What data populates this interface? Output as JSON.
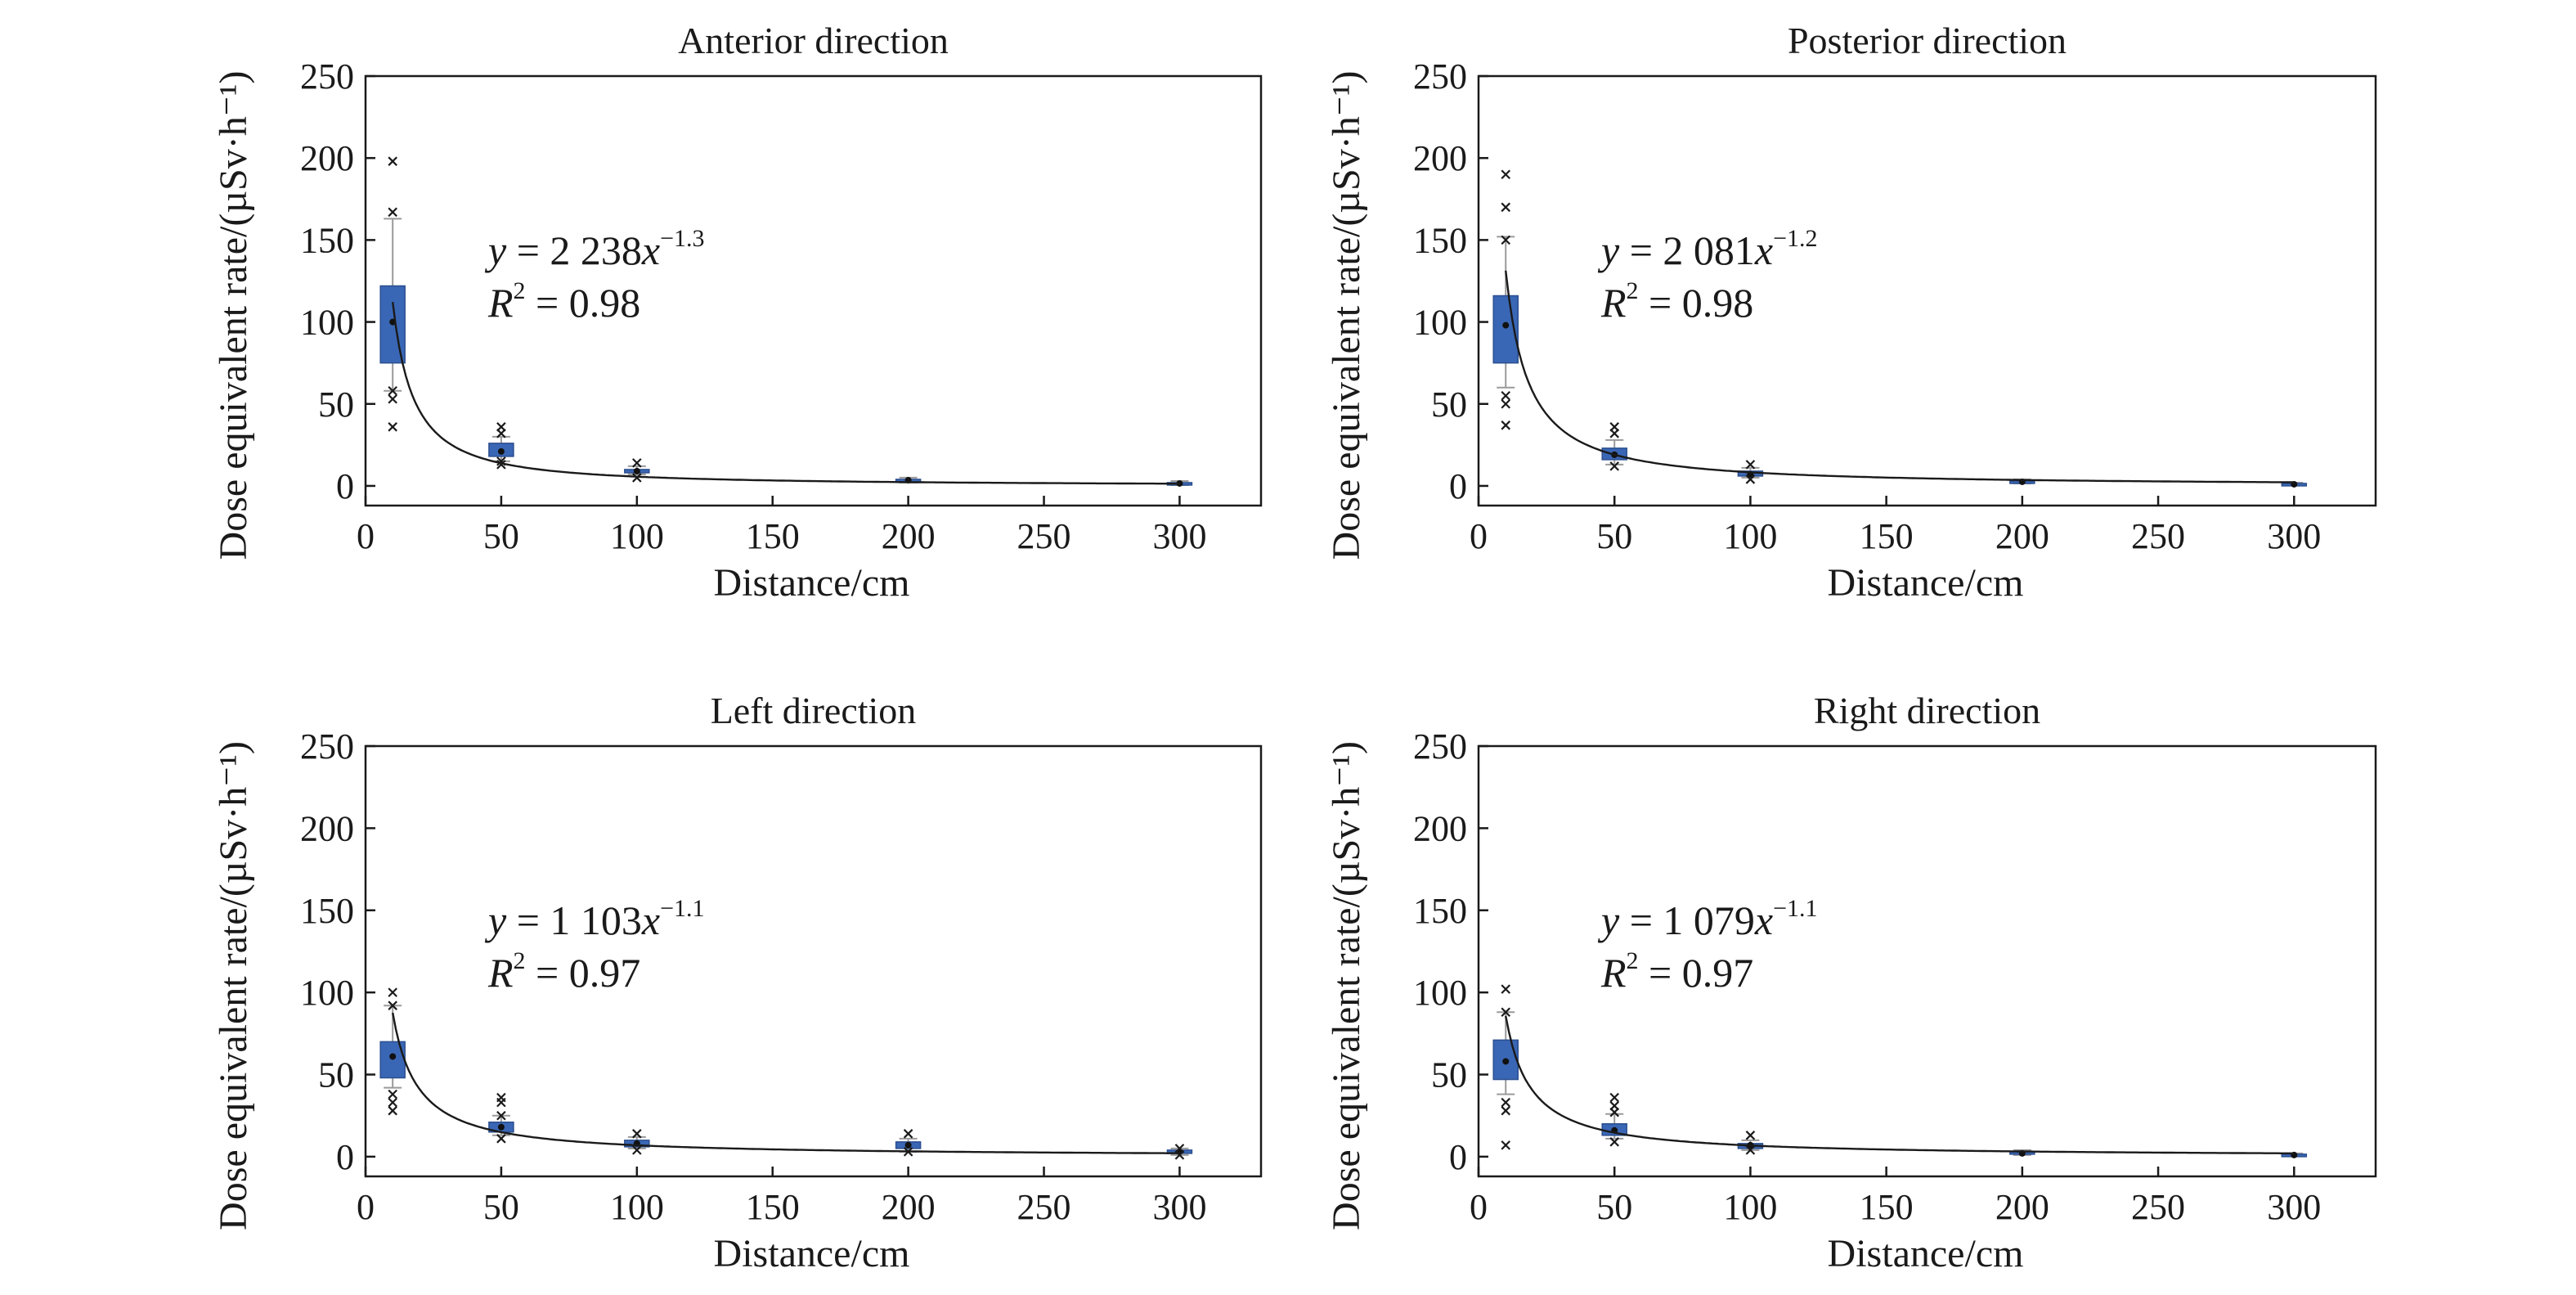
{
  "chart_data": [
    {
      "type": "box",
      "title": "Anterior direction",
      "xlabel": "Distance/cm",
      "ylabel": "Dose equivalent rate/(µSv·h⁻¹)",
      "xlim": [
        0,
        330
      ],
      "ylim": [
        -12,
        250
      ],
      "xticks": [
        0,
        50,
        100,
        150,
        200,
        250,
        300
      ],
      "yticks": [
        0,
        50,
        100,
        150,
        200,
        250
      ],
      "grid": false,
      "boxes": [
        {
          "x": 10,
          "q1": 75,
          "median": 100,
          "q3": 122,
          "whisker_low": 58,
          "whisker_high": 163,
          "outliers": [
            198,
            167,
            58,
            53,
            36
          ]
        },
        {
          "x": 50,
          "q1": 18,
          "median": 21,
          "q3": 26,
          "whisker_low": 15,
          "whisker_high": 30,
          "outliers": [
            36,
            32,
            15,
            13
          ]
        },
        {
          "x": 100,
          "q1": 8,
          "median": 9,
          "q3": 10,
          "whisker_low": 7,
          "whisker_high": 12,
          "outliers": [
            14,
            5
          ]
        },
        {
          "x": 200,
          "q1": 3,
          "median": 3.5,
          "q3": 4,
          "whisker_low": 2,
          "whisker_high": 5,
          "outliers": []
        },
        {
          "x": 300,
          "q1": 1,
          "median": 1.5,
          "q3": 2,
          "whisker_low": 0.5,
          "whisker_high": 3,
          "outliers": []
        }
      ],
      "fit": {
        "a": 2238,
        "b": -1.3,
        "y_prefix": "y = 2 238",
        "x_var": "x",
        "exponent": "−1.3",
        "r2_prefix": "R",
        "r2_power": "2",
        "r2_value": " = 0.98"
      }
    },
    {
      "type": "box",
      "title": "Posterior direction",
      "xlabel": "Distance/cm",
      "ylabel": "Dose equivalent rate/(µSv·h⁻¹)",
      "xlim": [
        0,
        330
      ],
      "ylim": [
        -12,
        250
      ],
      "xticks": [
        0,
        50,
        100,
        150,
        200,
        250,
        300
      ],
      "yticks": [
        0,
        50,
        100,
        150,
        200,
        250
      ],
      "grid": false,
      "boxes": [
        {
          "x": 10,
          "q1": 75,
          "median": 98,
          "q3": 116,
          "whisker_low": 60,
          "whisker_high": 152,
          "outliers": [
            190,
            170,
            150,
            55,
            50,
            37
          ]
        },
        {
          "x": 50,
          "q1": 16,
          "median": 19,
          "q3": 23,
          "whisker_low": 13,
          "whisker_high": 28,
          "outliers": [
            36,
            32,
            12
          ]
        },
        {
          "x": 100,
          "q1": 6,
          "median": 7,
          "q3": 9,
          "whisker_low": 5,
          "whisker_high": 11,
          "outliers": [
            13,
            4
          ]
        },
        {
          "x": 200,
          "q1": 2,
          "median": 2.5,
          "q3": 3,
          "whisker_low": 1.5,
          "whisker_high": 4,
          "outliers": []
        },
        {
          "x": 300,
          "q1": 0.5,
          "median": 1,
          "q3": 1.5,
          "whisker_low": 0.2,
          "whisker_high": 2,
          "outliers": []
        }
      ],
      "fit": {
        "a": 2081,
        "b": -1.2,
        "y_prefix": "y = 2 081",
        "x_var": "x",
        "exponent": "−1.2",
        "r2_prefix": "R",
        "r2_power": "2",
        "r2_value": " = 0.98"
      }
    },
    {
      "type": "box",
      "title": "Left direction",
      "xlabel": "Distance/cm",
      "ylabel": "Dose equivalent rate/(µSv·h⁻¹)",
      "xlim": [
        0,
        330
      ],
      "ylim": [
        -12,
        250
      ],
      "xticks": [
        0,
        50,
        100,
        150,
        200,
        250,
        300
      ],
      "yticks": [
        0,
        50,
        100,
        150,
        200,
        250
      ],
      "grid": false,
      "boxes": [
        {
          "x": 10,
          "q1": 48,
          "median": 61,
          "q3": 70,
          "whisker_low": 42,
          "whisker_high": 92,
          "outliers": [
            100,
            92,
            38,
            33,
            28
          ]
        },
        {
          "x": 50,
          "q1": 15,
          "median": 18,
          "q3": 21,
          "whisker_low": 13,
          "whisker_high": 25,
          "outliers": [
            36,
            33,
            25,
            11
          ]
        },
        {
          "x": 100,
          "q1": 6,
          "median": 8,
          "q3": 10,
          "whisker_low": 5,
          "whisker_high": 12,
          "outliers": [
            14,
            4
          ]
        },
        {
          "x": 200,
          "q1": 5,
          "median": 7,
          "q3": 9,
          "whisker_low": 3,
          "whisker_high": 11,
          "outliers": [
            14,
            3
          ]
        },
        {
          "x": 300,
          "q1": 2,
          "median": 3,
          "q3": 4,
          "whisker_low": 1,
          "whisker_high": 5,
          "outliers": [
            5,
            1
          ]
        }
      ],
      "fit": {
        "a": 1103,
        "b": -1.1,
        "y_prefix": "y = 1 103",
        "x_var": "x",
        "exponent": "−1.1",
        "r2_prefix": "R",
        "r2_power": "2",
        "r2_value": " = 0.97"
      }
    },
    {
      "type": "box",
      "title": "Right direction",
      "xlabel": "Distance/cm",
      "ylabel": "Dose equivalent rate/(µSv·h⁻¹)",
      "xlim": [
        0,
        330
      ],
      "ylim": [
        -12,
        250
      ],
      "xticks": [
        0,
        50,
        100,
        150,
        200,
        250,
        300
      ],
      "yticks": [
        0,
        50,
        100,
        150,
        200,
        250
      ],
      "grid": false,
      "boxes": [
        {
          "x": 10,
          "q1": 47,
          "median": 58,
          "q3": 71,
          "whisker_low": 38,
          "whisker_high": 88,
          "outliers": [
            102,
            88,
            33,
            28,
            7
          ]
        },
        {
          "x": 50,
          "q1": 13,
          "median": 16,
          "q3": 20,
          "whisker_low": 11,
          "whisker_high": 26,
          "outliers": [
            36,
            31,
            27,
            9
          ]
        },
        {
          "x": 100,
          "q1": 5,
          "median": 7,
          "q3": 8,
          "whisker_low": 4,
          "whisker_high": 10,
          "outliers": [
            13,
            4
          ]
        },
        {
          "x": 200,
          "q1": 1.5,
          "median": 2,
          "q3": 3,
          "whisker_low": 1,
          "whisker_high": 4,
          "outliers": []
        },
        {
          "x": 300,
          "q1": 0.5,
          "median": 1,
          "q3": 1.5,
          "whisker_low": 0.2,
          "whisker_high": 2,
          "outliers": []
        }
      ],
      "fit": {
        "a": 1079,
        "b": -1.1,
        "y_prefix": "y = 1 079",
        "x_var": "x",
        "exponent": "−1.1",
        "r2_prefix": "R",
        "r2_power": "2",
        "r2_value": " = 0.97"
      }
    }
  ],
  "colors": {
    "box_fill": "#3a67b5",
    "box_edge": "#2c4f8f",
    "line": "#1a1a1a",
    "whisker": "#9a9a9a",
    "axis": "#1a1a1a"
  }
}
